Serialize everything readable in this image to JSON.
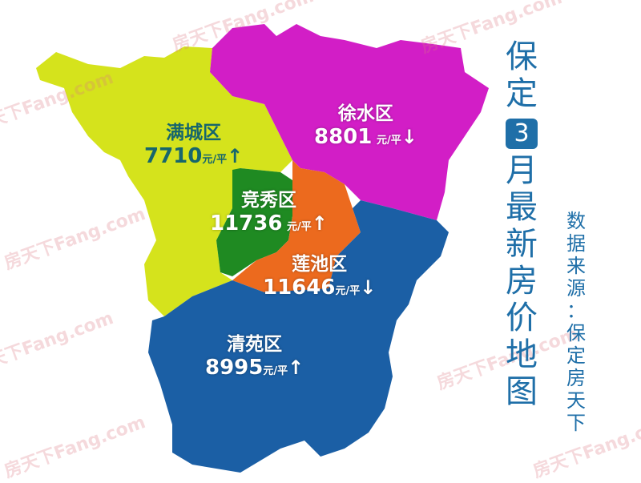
{
  "title": {
    "part1": [
      "保",
      "定"
    ],
    "month": "3",
    "part2": [
      "月",
      "最",
      "新",
      "房",
      "价",
      "地",
      "图"
    ]
  },
  "source": [
    "数",
    "据",
    "来",
    "源",
    "：",
    "保",
    "定",
    "房",
    "天",
    "下"
  ],
  "watermark": "房天下Fang.com",
  "unit": "元/平",
  "districts": [
    {
      "name": "满城区",
      "price": "7710",
      "trend": "↑",
      "color": "#d5e31c"
    },
    {
      "name": "徐水区",
      "price": "8801",
      "trend": "↓",
      "color": "#d21ec6"
    },
    {
      "name": "竞秀区",
      "price": "11736",
      "trend": "↑",
      "color": "#1f8a22"
    },
    {
      "name": "莲池区",
      "price": "11646",
      "trend": "↓",
      "color": "#ec6a1e"
    },
    {
      "name": "清苑区",
      "price": "8995",
      "trend": "↑",
      "color": "#1b5fa5"
    }
  ]
}
